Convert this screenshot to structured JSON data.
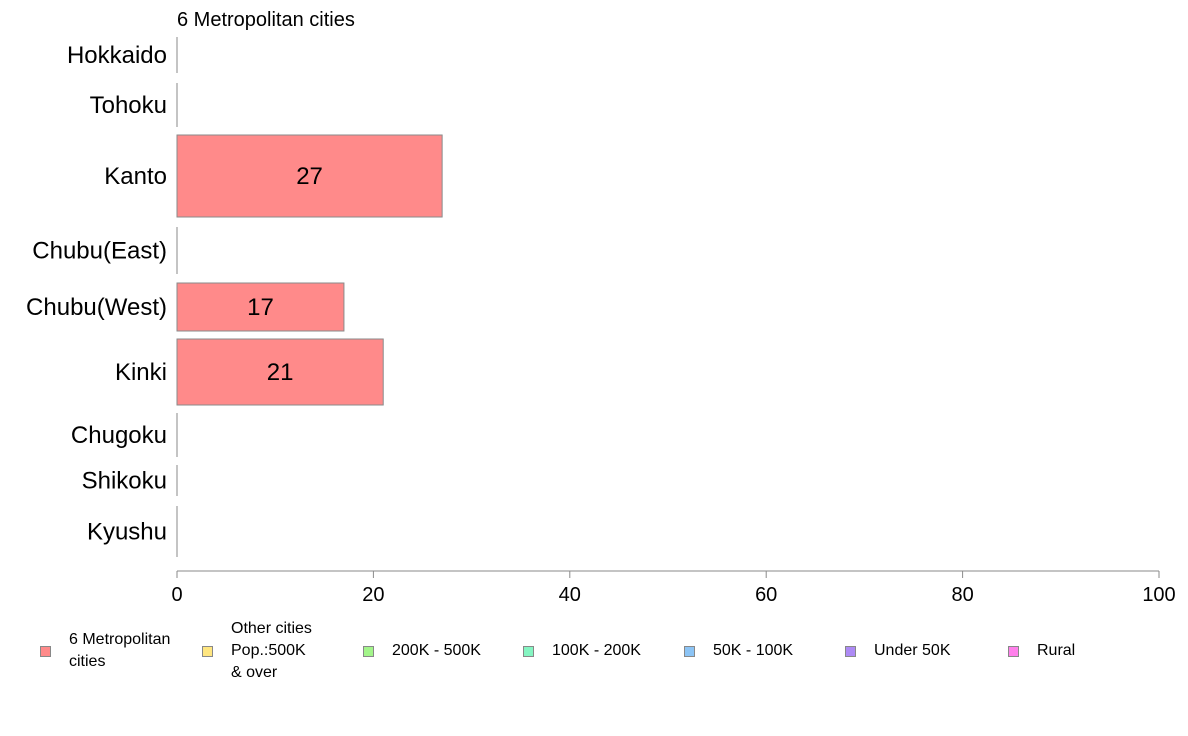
{
  "chart_data": {
    "type": "bar",
    "orientation": "horizontal",
    "title": "6 Metropolitan cities",
    "categories": [
      "Hokkaido",
      "Tohoku",
      "Kanto",
      "Chubu(East)",
      "Chubu(West)",
      "Kinki",
      "Chugoku",
      "Shikoku",
      "Kyushu"
    ],
    "series": [
      {
        "name": "6 Metropolitan\n cities",
        "values": [
          0,
          0,
          27,
          0,
          17,
          21,
          0,
          0,
          0
        ]
      }
    ],
    "data_labels": [
      "",
      "",
      "27",
      "",
      "17",
      "21",
      "",
      "",
      ""
    ],
    "xlim": [
      0,
      100
    ],
    "x_ticks": [
      "0",
      "20",
      "40",
      "60",
      "80",
      "100"
    ],
    "grid": false,
    "legend_position": "bottom",
    "legend": [
      {
        "label": "6 Metropolitan\n cities",
        "color": "#ff8a8a"
      },
      {
        "label": "Other cities\nPop.:500K\n & over",
        "color": "#ffe680"
      },
      {
        "label": "200K - 500K",
        "color": "#a3f58a"
      },
      {
        "label": "100K - 200K",
        "color": "#85f5c2"
      },
      {
        "label": "50K - 100K",
        "color": "#8cc4f5"
      },
      {
        "label": "Under 50K",
        "color": "#ad8af5"
      },
      {
        "label": "Rural",
        "color": "#ff80eb"
      }
    ]
  }
}
